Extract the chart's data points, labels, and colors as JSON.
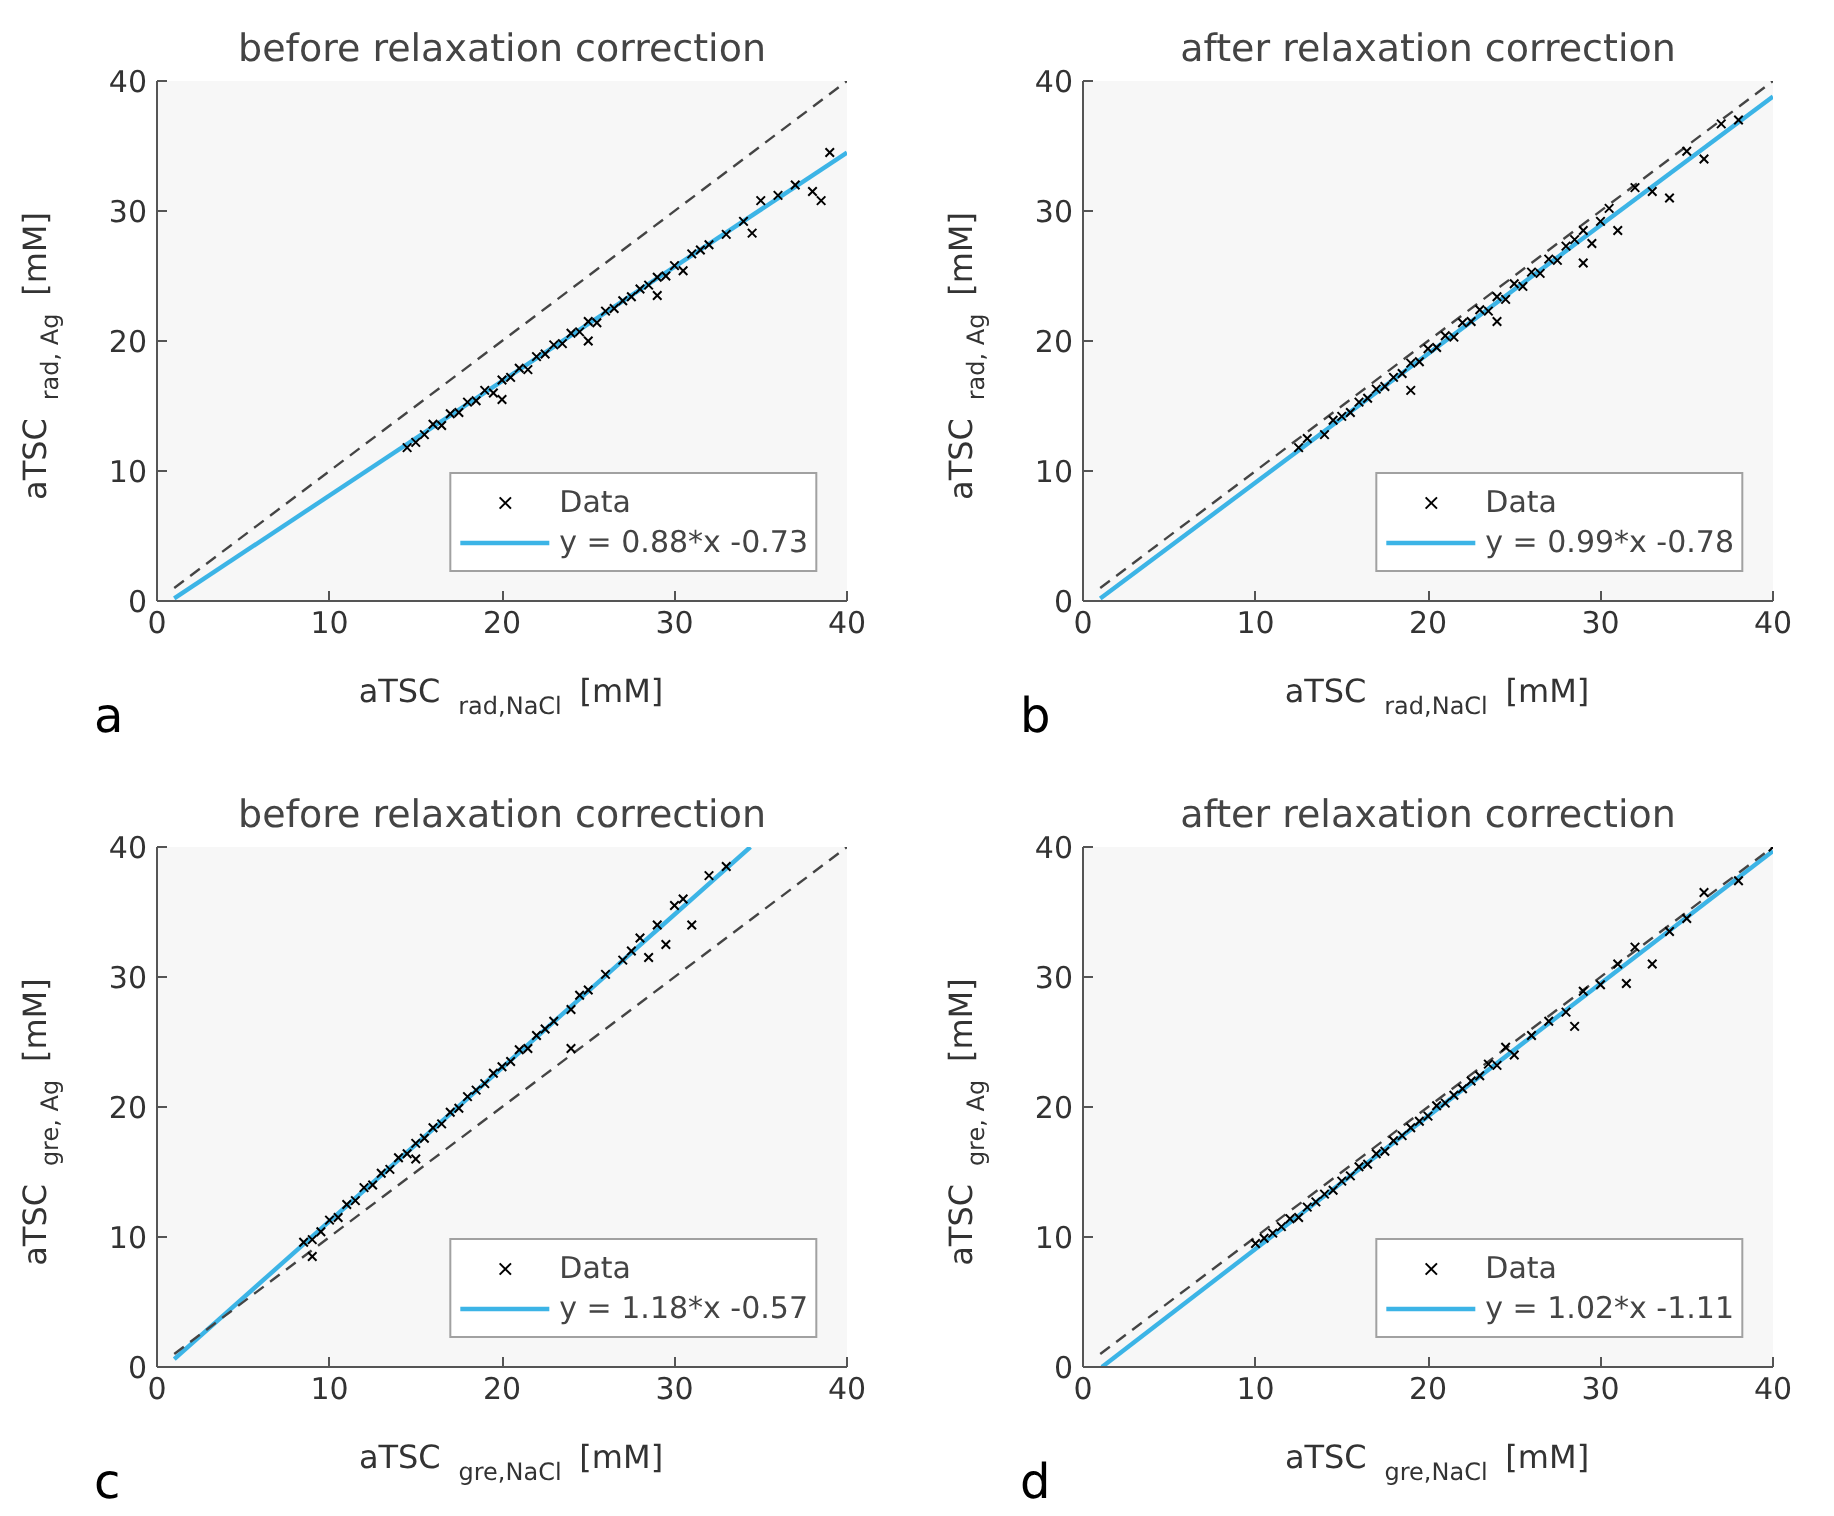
{
  "chart_data": [
    {
      "type": "scatter",
      "title": "before relaxation correction",
      "xlabel": "aTSC $_{rad,NaCl}$ [mM]",
      "ylabel": "aTSC $_{rad, Ag}$ [mM]",
      "xlim": [
        0,
        40
      ],
      "ylim": [
        0,
        40
      ],
      "xticks": [
        0,
        10,
        20,
        30,
        40
      ],
      "yticks": [
        0,
        10,
        20,
        30,
        40
      ],
      "grid": false,
      "legend": "bottom right",
      "annotations": [
        "a"
      ],
      "series": [
        {
          "name": "Data",
          "marker": "cross",
          "color": "#000000",
          "x": [
            14.5,
            15,
            15.5,
            16,
            16.5,
            17,
            17.5,
            18,
            18.5,
            19,
            19.5,
            20,
            20.5,
            21,
            21.5,
            22,
            22.5,
            23,
            23.5,
            24,
            24.5,
            25,
            25.5,
            26,
            26.5,
            27,
            27.5,
            28,
            28.5,
            29,
            29.5,
            30,
            30.5,
            31,
            31.5,
            32,
            33,
            34,
            34.5,
            35,
            36,
            37,
            38,
            38.5,
            39,
            20,
            25,
            29
          ],
          "values": [
            11.8,
            12.2,
            12.8,
            13.6,
            13.5,
            14.4,
            14.5,
            15.3,
            15.4,
            16.2,
            16.0,
            17.0,
            17.2,
            17.9,
            17.8,
            18.8,
            19.0,
            19.7,
            19.8,
            20.6,
            20.7,
            21.5,
            21.4,
            22.3,
            22.5,
            23.1,
            23.4,
            24.0,
            24.3,
            24.9,
            25.0,
            25.8,
            25.4,
            26.7,
            27.0,
            27.4,
            28.2,
            29.2,
            28.3,
            30.8,
            31.2,
            32.0,
            31.5,
            30.8,
            34.5,
            15.5,
            20.0,
            23.5
          ]
        },
        {
          "name": "y = 0.88*x -0.73",
          "type": "line",
          "color": "#3cb4e6",
          "x": [
            1,
            40
          ],
          "values": [
            0.2,
            34.5
          ]
        },
        {
          "type": "line",
          "line_style": "dashed",
          "color": "#444444",
          "x": [
            1,
            40
          ],
          "values": [
            1,
            40
          ]
        }
      ]
    },
    {
      "type": "scatter",
      "title": "after relaxation correction",
      "xlabel": "aTSC $_{rad,NaCl}$ [mM]",
      "ylabel": "aTSC $_{rad, Ag}$ [mM]",
      "xlim": [
        0,
        40
      ],
      "ylim": [
        0,
        40
      ],
      "xticks": [
        0,
        10,
        20,
        30,
        40
      ],
      "yticks": [
        0,
        10,
        20,
        30,
        40
      ],
      "grid": false,
      "legend": "bottom right",
      "annotations": [
        "b"
      ],
      "series": [
        {
          "name": "Data",
          "marker": "cross",
          "color": "#000000",
          "x": [
            12.5,
            13,
            14,
            14.5,
            15,
            15.5,
            16,
            16.5,
            17,
            17.5,
            18,
            18.5,
            19,
            19.5,
            20,
            20.5,
            21,
            21.5,
            22,
            22.5,
            23,
            23.5,
            24,
            24.5,
            25,
            25.5,
            26,
            26.5,
            27,
            27.5,
            28,
            28.5,
            29,
            29.5,
            30,
            30.5,
            31,
            32,
            33,
            34,
            35,
            36,
            37,
            38,
            19,
            24,
            29
          ],
          "values": [
            11.8,
            12.5,
            12.8,
            13.9,
            14.2,
            14.5,
            15.3,
            15.6,
            16.3,
            16.5,
            17.2,
            17.5,
            18.3,
            18.4,
            19.4,
            19.5,
            20.4,
            20.3,
            21.4,
            21.5,
            22.4,
            22.3,
            23.4,
            23.2,
            24.4,
            24.2,
            25.3,
            25.2,
            26.3,
            26.2,
            27.3,
            27.8,
            28.5,
            27.5,
            29.2,
            30.2,
            28.5,
            31.8,
            31.5,
            31.0,
            34.6,
            34.0,
            36.7,
            37.0,
            16.2,
            21.5,
            26.0
          ]
        },
        {
          "name": "y = 0.99*x -0.78",
          "type": "line",
          "color": "#3cb4e6",
          "x": [
            1,
            40
          ],
          "values": [
            0.2,
            38.8
          ]
        },
        {
          "type": "line",
          "line_style": "dashed",
          "color": "#444444",
          "x": [
            1,
            40
          ],
          "values": [
            1,
            40
          ]
        }
      ]
    },
    {
      "type": "scatter",
      "title": "before relaxation correction",
      "xlabel": "aTSC $_{gre,NaCl}$ [mM]",
      "ylabel": "aTSC $_{gre, Ag}$ [mM]",
      "xlim": [
        0,
        40
      ],
      "ylim": [
        0,
        40
      ],
      "xticks": [
        0,
        10,
        20,
        30,
        40
      ],
      "yticks": [
        0,
        10,
        20,
        30,
        40
      ],
      "grid": false,
      "legend": "bottom right",
      "annotations": [
        "c"
      ],
      "series": [
        {
          "name": "Data",
          "marker": "cross",
          "color": "#000000",
          "x": [
            8.5,
            9,
            9.5,
            10,
            10.5,
            11,
            11.5,
            12,
            12.5,
            13,
            13.5,
            14,
            14.5,
            15,
            15.5,
            16,
            16.5,
            17,
            17.5,
            18,
            18.5,
            19,
            19.5,
            20,
            20.5,
            21,
            21.5,
            22,
            22.5,
            23,
            24,
            24.5,
            25,
            26,
            27,
            27.5,
            28,
            28.5,
            29,
            29.5,
            30,
            30.5,
            31,
            32,
            33,
            9,
            15,
            24
          ],
          "values": [
            9.6,
            9.8,
            10.4,
            11.3,
            11.5,
            12.5,
            12.8,
            13.8,
            14.0,
            14.9,
            15.2,
            16.1,
            16.4,
            17.2,
            17.6,
            18.4,
            18.7,
            19.6,
            19.9,
            20.8,
            21.3,
            21.8,
            22.6,
            23.1,
            23.5,
            24.4,
            24.5,
            25.5,
            26.0,
            26.6,
            27.5,
            28.6,
            29.0,
            30.2,
            31.3,
            32.0,
            33.0,
            31.5,
            34.0,
            32.5,
            35.5,
            36.0,
            34.0,
            37.8,
            38.5,
            8.5,
            16.0,
            24.5
          ]
        },
        {
          "name": "y = 1.18*x -0.57",
          "type": "line",
          "color": "#3cb4e6",
          "x": [
            1,
            34.4
          ],
          "values": [
            0.6,
            40.0
          ]
        },
        {
          "type": "line",
          "line_style": "dashed",
          "color": "#444444",
          "x": [
            1,
            40
          ],
          "values": [
            1,
            40
          ]
        }
      ]
    },
    {
      "type": "scatter",
      "title": "after relaxation correction",
      "xlabel": "aTSC $_{gre,NaCl}$ [mM]",
      "ylabel": "aTSC $_{gre, Ag}$ [mM]",
      "xlim": [
        0,
        40
      ],
      "ylim": [
        0,
        40
      ],
      "xticks": [
        0,
        10,
        20,
        30,
        40
      ],
      "yticks": [
        0,
        10,
        20,
        30,
        40
      ],
      "grid": false,
      "legend": "bottom right",
      "annotations": [
        "d"
      ],
      "series": [
        {
          "name": "Data",
          "marker": "cross",
          "color": "#000000",
          "x": [
            10,
            10.5,
            11,
            11.5,
            12,
            12.5,
            13,
            13.5,
            14,
            14.5,
            15,
            15.5,
            16,
            16.5,
            17,
            17.5,
            18,
            18.5,
            19,
            19.5,
            20,
            20.5,
            21,
            21.5,
            22,
            22.5,
            23,
            23.5,
            24,
            24.5,
            25,
            26,
            27,
            28,
            28.5,
            29,
            30,
            31,
            31.5,
            32,
            33,
            34,
            35,
            36,
            38,
            40
          ],
          "values": [
            9.5,
            9.9,
            10.3,
            10.8,
            11.4,
            11.5,
            12.3,
            12.7,
            13.3,
            13.6,
            14.3,
            14.7,
            15.4,
            15.6,
            16.4,
            16.6,
            17.4,
            17.8,
            18.4,
            18.9,
            19.3,
            20.1,
            20.3,
            20.9,
            21.4,
            22.0,
            22.4,
            23.3,
            23.2,
            24.6,
            24.0,
            25.5,
            26.6,
            27.3,
            26.2,
            28.9,
            29.4,
            31.0,
            29.5,
            32.3,
            31.0,
            33.5,
            34.5,
            36.5,
            37.4,
            40.0
          ]
        },
        {
          "name": "y = 1.02*x -1.11",
          "type": "line",
          "color": "#3cb4e6",
          "x": [
            1.1,
            40
          ],
          "values": [
            0,
            39.7
          ]
        },
        {
          "type": "line",
          "line_style": "dashed",
          "color": "#444444",
          "x": [
            1,
            40
          ],
          "values": [
            1,
            40
          ]
        }
      ]
    }
  ]
}
